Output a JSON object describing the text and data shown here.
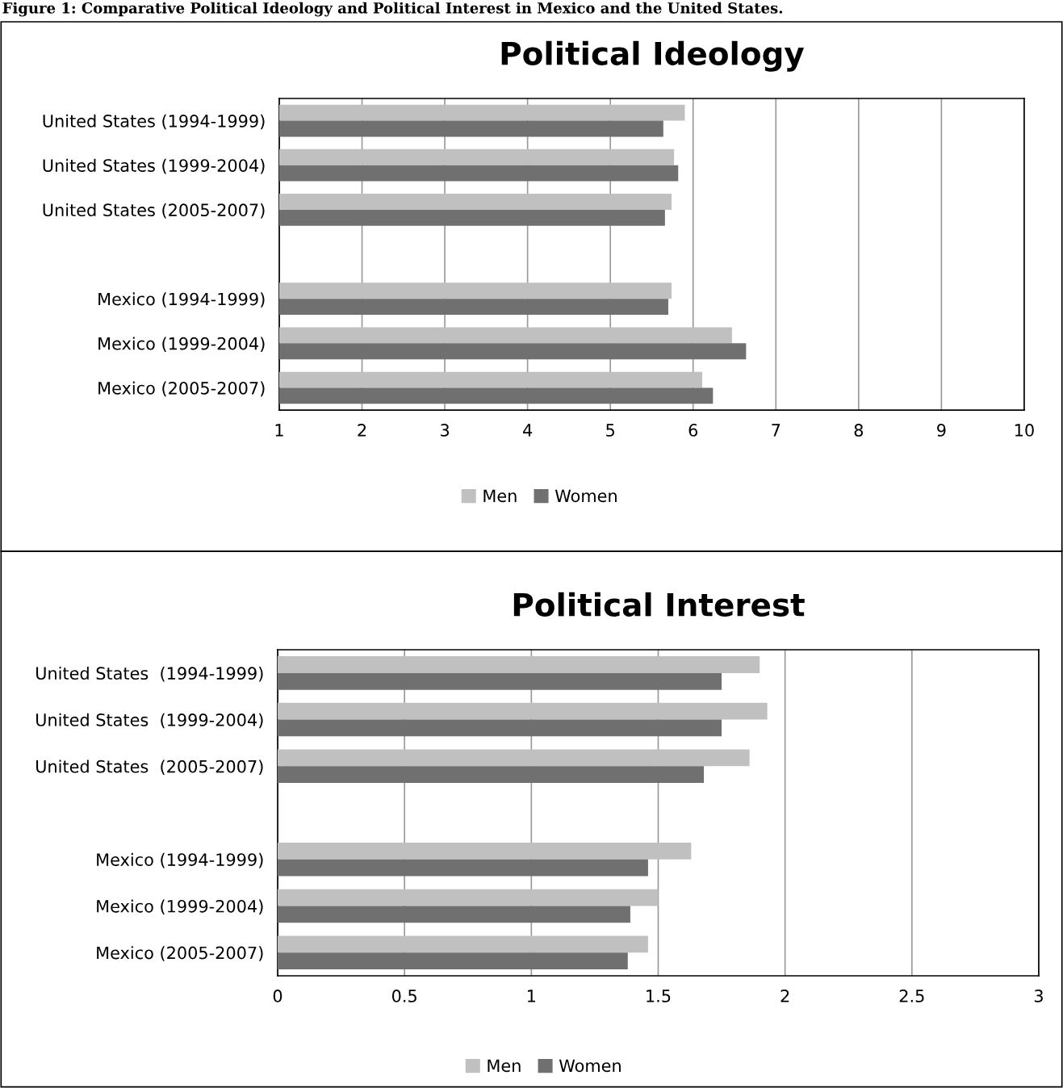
{
  "chart_data": [
    {
      "type": "bar",
      "orientation": "horizontal",
      "title": "Political Ideology",
      "annotations": [
        "Figure 1: Comparative Political Ideology and Political Interest in Mexico and the United States."
      ],
      "categories": [
        "United States (1994-1999)",
        "United States (1999-2004)",
        "United States (2005-2007)",
        null,
        "Mexico (1994-1999)",
        "Mexico (1999-2004)",
        "Mexico (2005-2007)"
      ],
      "series": [
        {
          "name": "Men",
          "color": "#c0c0c0",
          "values": [
            5.9,
            5.77,
            5.74,
            null,
            5.74,
            6.47,
            6.11
          ]
        },
        {
          "name": "Women",
          "color": "#707070",
          "values": [
            5.64,
            5.82,
            5.66,
            null,
            5.7,
            6.64,
            6.24
          ]
        }
      ],
      "xlim": [
        1,
        10
      ],
      "xticks": [
        1,
        2,
        3,
        4,
        5,
        6,
        7,
        8,
        9,
        10
      ],
      "grid": "x",
      "legend": "bottom"
    },
    {
      "type": "bar",
      "orientation": "horizontal",
      "title": "Political Interest",
      "categories": [
        "United States  (1994-1999)",
        "United States  (1999-2004)",
        "United States  (2005-2007)",
        null,
        "Mexico (1994-1999)",
        "Mexico (1999-2004)",
        "Mexico (2005-2007)"
      ],
      "series": [
        {
          "name": "Men",
          "color": "#c0c0c0",
          "values": [
            1.9,
            1.93,
            1.86,
            null,
            1.63,
            1.5,
            1.46
          ]
        },
        {
          "name": "Women",
          "color": "#707070",
          "values": [
            1.75,
            1.75,
            1.68,
            null,
            1.46,
            1.39,
            1.38
          ]
        }
      ],
      "xlim": [
        0,
        3
      ],
      "xticks": [
        0,
        0.5,
        1,
        1.5,
        2,
        2.5,
        3
      ],
      "grid": "x",
      "legend": "bottom"
    }
  ]
}
